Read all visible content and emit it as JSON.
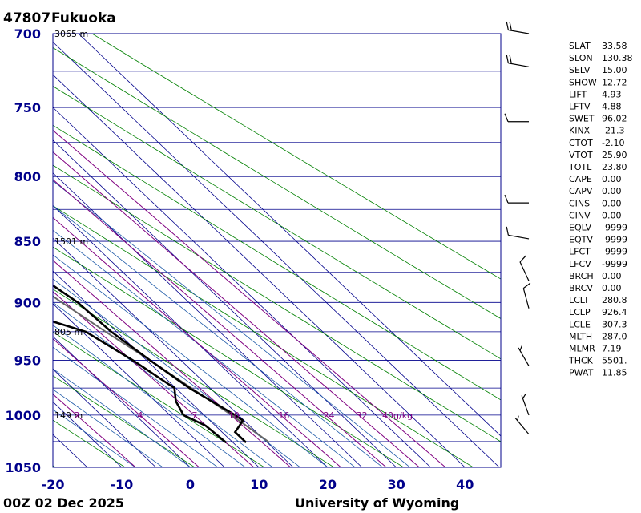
{
  "header": {
    "station_id": "47807",
    "station_name": "Fukuoka"
  },
  "footer": {
    "time": "00Z 02 Dec 2025",
    "credit": "University of Wyoming"
  },
  "chart_data": {
    "type": "skew-t",
    "pressure_levels": [
      700,
      750,
      800,
      850,
      900,
      950,
      1000,
      1050
    ],
    "pressure_labels": [
      "700",
      "750",
      "800",
      "850",
      "900",
      "950",
      "1000",
      "1050"
    ],
    "temp_ticks": [
      -20,
      -10,
      0,
      10,
      20,
      30,
      40
    ],
    "temp_labels": [
      "-20",
      "-10",
      "0",
      "10",
      "20",
      "30",
      "40"
    ],
    "height_labels": [
      {
        "p": 700,
        "text": "3065 m"
      },
      {
        "p": 850,
        "text": "1501 m"
      },
      {
        "p": 925,
        "text": "805 m"
      },
      {
        "p": 1000,
        "text": "149 m"
      }
    ],
    "mixing_ratio_labels": [
      "2",
      "4",
      "7",
      "10",
      "16",
      "24",
      "32",
      "40g/kg"
    ],
    "mixing_ratios": [
      2,
      4,
      7,
      10,
      16,
      24,
      32,
      40
    ],
    "temperature": [
      [
        700,
        -2.5
      ],
      [
        750,
        -0.2
      ],
      [
        800,
        2.0
      ],
      [
        850,
        5.5
      ],
      [
        860,
        7.5
      ],
      [
        875,
        7.0
      ],
      [
        900,
        8.8
      ],
      [
        925,
        9.2
      ],
      [
        950,
        10.5
      ],
      [
        975,
        12.0
      ],
      [
        1000,
        14.5
      ],
      [
        1005,
        14.8
      ],
      [
        1010,
        13.5
      ],
      [
        1016,
        11.9
      ],
      [
        1026,
        11.9
      ]
    ],
    "dewpoint": [
      [
        865,
        -38.0
      ],
      [
        877,
        -5.2
      ],
      [
        902,
        -6.3
      ],
      [
        908,
        -0.8
      ],
      [
        925,
        5.5
      ],
      [
        950,
        8.0
      ],
      [
        975,
        9.8
      ],
      [
        987,
        8.0
      ],
      [
        1000,
        7.0
      ],
      [
        1010,
        8.6
      ],
      [
        1026,
        9.0
      ]
    ],
    "parcel": [
      [
        700,
        -5.5
      ],
      [
        750,
        -3.0
      ],
      [
        800,
        -0.5
      ],
      [
        850,
        3.0
      ],
      [
        900,
        6.5
      ],
      [
        926.4,
        8.5
      ],
      [
        950,
        10.5
      ],
      [
        1000,
        14.0
      ],
      [
        1026,
        15.3
      ]
    ],
    "wind_barbs": [
      {
        "p": 700,
        "spd": 20,
        "dir": 280
      },
      {
        "p": 722,
        "spd": 20,
        "dir": 280
      },
      {
        "p": 760,
        "spd": 10,
        "dir": 270
      },
      {
        "p": 820,
        "spd": 10,
        "dir": 270
      },
      {
        "p": 848,
        "spd": 10,
        "dir": 280
      },
      {
        "p": 882,
        "spd": 10,
        "dir": 335
      },
      {
        "p": 905,
        "spd": 10,
        "dir": 345
      },
      {
        "p": 955,
        "spd": 5,
        "dir": 330
      },
      {
        "p": 1000,
        "spd": 5,
        "dir": 340
      },
      {
        "p": 1018,
        "spd": 5,
        "dir": 320
      }
    ],
    "indices": [
      {
        "name": "SLAT",
        "value": "33.58"
      },
      {
        "name": "SLON",
        "value": "130.38"
      },
      {
        "name": "SELV",
        "value": "15.00"
      },
      {
        "name": "SHOW",
        "value": "12.72"
      },
      {
        "name": "LIFT",
        "value": "4.93"
      },
      {
        "name": "LFTV",
        "value": "4.88"
      },
      {
        "name": "SWET",
        "value": "96.02"
      },
      {
        "name": "KINX",
        "value": "-21.3"
      },
      {
        "name": "CTOT",
        "value": "-2.10"
      },
      {
        "name": "VTOT",
        "value": "25.90"
      },
      {
        "name": "TOTL",
        "value": "23.80"
      },
      {
        "name": "CAPE",
        "value": "0.00"
      },
      {
        "name": "CAPV",
        "value": "0.00"
      },
      {
        "name": "CINS",
        "value": "0.00"
      },
      {
        "name": "CINV",
        "value": "0.00"
      },
      {
        "name": "EQLV",
        "value": "-9999"
      },
      {
        "name": "EQTV",
        "value": "-9999"
      },
      {
        "name": "LFCT",
        "value": "-9999"
      },
      {
        "name": "LFCV",
        "value": "-9999"
      },
      {
        "name": "BRCH",
        "value": "0.00"
      },
      {
        "name": "BRCV",
        "value": "0.00"
      },
      {
        "name": "LCLT",
        "value": "280.8"
      },
      {
        "name": "LCLP",
        "value": "926.4"
      },
      {
        "name": "LCLE",
        "value": "307.3"
      },
      {
        "name": "MLTH",
        "value": "287.0"
      },
      {
        "name": "MLMR",
        "value": "7.19"
      },
      {
        "name": "THCK",
        "value": "5501."
      },
      {
        "name": "PWAT",
        "value": "11.85"
      }
    ],
    "colors": {
      "isobar": "#00008b",
      "isotherm": "#00008b",
      "dry_adiabat": "#008000",
      "moist_adiabat": "#1e5aa8",
      "mixing_ratio": "#800080",
      "temperature": "#000000",
      "dewpoint": "#000000",
      "parcel": "#666666"
    }
  }
}
